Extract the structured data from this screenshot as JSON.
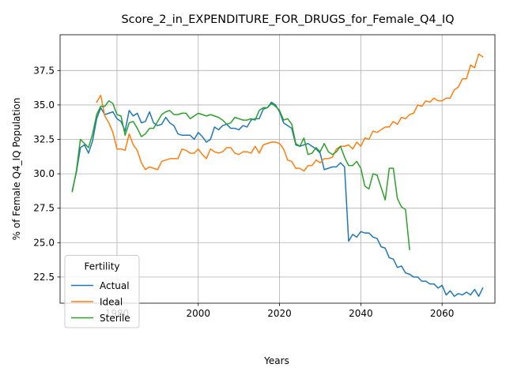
{
  "chart_data": {
    "type": "line",
    "title": "Score_2_in_EXPENDITURE_FOR_DRUGS_for_Female_Q4_IQ",
    "xlabel": "Years",
    "ylabel": "% of Female Q4_IQ Population",
    "xlim": [
      1966,
      2073
    ],
    "ylim": [
      20.6,
      40.1
    ],
    "x_ticks": [
      1980,
      2000,
      2020,
      2040,
      2060
    ],
    "x_tick_labels": [
      "1980",
      "2000",
      "2020",
      "2040",
      "2060"
    ],
    "y_ticks": [
      22.5,
      25.0,
      27.5,
      30.0,
      32.5,
      35.0,
      37.5
    ],
    "y_tick_labels": [
      "22.5",
      "25.0",
      "27.5",
      "30.0",
      "32.5",
      "35.0",
      "37.5"
    ],
    "grid": true,
    "legend": {
      "title": "Fertility",
      "position": "lower-left"
    },
    "series": [
      {
        "name": "Actual",
        "color": "#1f77b4",
        "x": [
          1969,
          1970,
          1971,
          1972,
          1973,
          1974,
          1975,
          1976,
          1977,
          1978,
          1979,
          1980,
          1981,
          1982,
          1983,
          1984,
          1985,
          1986,
          1987,
          1988,
          1989,
          1990,
          1991,
          1992,
          1993,
          1994,
          1995,
          1996,
          1997,
          1998,
          1999,
          2000,
          2001,
          2002,
          2003,
          2004,
          2005,
          2006,
          2007,
          2008,
          2009,
          2010,
          2011,
          2012,
          2013,
          2014,
          2015,
          2016,
          2017,
          2018,
          2019,
          2020,
          2021,
          2022,
          2023,
          2024,
          2025,
          2026,
          2027,
          2028,
          2029,
          2030,
          2031,
          2032,
          2033,
          2034,
          2035,
          2036,
          2037,
          2038,
          2039,
          2040,
          2041,
          2042,
          2043,
          2044,
          2045,
          2046,
          2047,
          2048,
          2049,
          2050,
          2051,
          2052,
          2053,
          2054,
          2055,
          2056,
          2057,
          2058,
          2059,
          2060,
          2061,
          2062,
          2063,
          2064,
          2065,
          2066,
          2067,
          2068,
          2069,
          2070
        ],
        "values": [
          28.8,
          30.1,
          31.9,
          32.1,
          31.5,
          32.4,
          34.0,
          34.8,
          34.3,
          34.4,
          34.5,
          34.0,
          33.8,
          33.1,
          34.6,
          34.2,
          34.4,
          33.7,
          33.8,
          34.5,
          33.7,
          33.5,
          33.6,
          34.1,
          33.7,
          33.5,
          32.9,
          32.8,
          32.8,
          32.8,
          32.5,
          33.0,
          32.7,
          32.3,
          32.5,
          33.4,
          33.2,
          33.5,
          33.6,
          33.3,
          33.3,
          33.2,
          33.5,
          33.4,
          33.9,
          34.0,
          34.0,
          34.7,
          34.8,
          35.2,
          35.0,
          34.5,
          33.7,
          33.5,
          33.3,
          32.1,
          32.0,
          32.1,
          32.2,
          32.0,
          31.8,
          31.5,
          30.3,
          30.4,
          30.5,
          30.5,
          30.8,
          30.5,
          25.1,
          25.6,
          25.4,
          25.8,
          25.7,
          25.7,
          25.4,
          25.3,
          24.7,
          24.6,
          23.9,
          23.8,
          23.2,
          23.3,
          22.8,
          22.7,
          22.5,
          22.5,
          22.2,
          22.2,
          22.0,
          22.0,
          21.7,
          21.9,
          21.2,
          21.5,
          21.1,
          21.3,
          21.2,
          21.4,
          21.2,
          21.6,
          21.1,
          21.7
        ]
      },
      {
        "name": "Ideal",
        "color": "#ff7f0e",
        "x": [
          1975,
          1976,
          1977,
          1978,
          1979,
          1980,
          1981,
          1982,
          1983,
          1984,
          1985,
          1986,
          1987,
          1988,
          1989,
          1990,
          1991,
          1992,
          1993,
          1994,
          1995,
          1996,
          1997,
          1998,
          1999,
          2000,
          2001,
          2002,
          2003,
          2004,
          2005,
          2006,
          2007,
          2008,
          2009,
          2010,
          2011,
          2012,
          2013,
          2014,
          2015,
          2016,
          2017,
          2018,
          2019,
          2020,
          2021,
          2022,
          2023,
          2024,
          2025,
          2026,
          2027,
          2028,
          2029,
          2030,
          2031,
          2032,
          2033,
          2034,
          2035,
          2036,
          2037,
          2038,
          2039,
          2040,
          2041,
          2042,
          2043,
          2044,
          2045,
          2046,
          2047,
          2048,
          2049,
          2050,
          2051,
          2052,
          2053,
          2054,
          2055,
          2056,
          2057,
          2058,
          2059,
          2060,
          2061,
          2062,
          2063,
          2064,
          2065,
          2066,
          2067,
          2068,
          2069,
          2070
        ],
        "values": [
          35.2,
          35.7,
          34.2,
          33.7,
          33.0,
          31.8,
          31.8,
          31.7,
          32.9,
          32.1,
          31.7,
          30.8,
          30.3,
          30.5,
          30.4,
          30.3,
          30.9,
          31.0,
          31.1,
          31.1,
          31.1,
          31.8,
          31.7,
          31.5,
          31.5,
          31.8,
          31.4,
          31.1,
          31.8,
          31.6,
          31.5,
          31.6,
          31.9,
          31.9,
          31.5,
          31.4,
          31.6,
          31.6,
          31.5,
          32.0,
          31.5,
          32.1,
          32.2,
          32.3,
          32.3,
          32.2,
          31.8,
          31.0,
          30.9,
          30.4,
          30.4,
          30.2,
          30.6,
          30.6,
          31.0,
          30.8,
          31.1,
          31.1,
          31.2,
          31.8,
          32.0,
          32.0,
          32.1,
          31.8,
          32.3,
          32.0,
          32.6,
          32.5,
          33.1,
          33.0,
          33.2,
          33.4,
          33.4,
          33.8,
          33.6,
          34.1,
          34.0,
          34.3,
          34.4,
          35.0,
          34.9,
          35.3,
          35.2,
          35.5,
          35.3,
          35.3,
          35.5,
          35.5,
          36.1,
          36.3,
          36.9,
          36.9,
          37.9,
          37.7,
          38.7,
          38.5
        ]
      },
      {
        "name": "Sterile",
        "color": "#2ca02c",
        "x": [
          1969,
          1970,
          1971,
          1972,
          1973,
          1974,
          1975,
          1976,
          1977,
          1978,
          1979,
          1980,
          1981,
          1982,
          1983,
          1984,
          1985,
          1986,
          1987,
          1988,
          1989,
          1990,
          1991,
          1992,
          1993,
          1994,
          1995,
          1996,
          1997,
          1998,
          1999,
          2000,
          2001,
          2002,
          2003,
          2004,
          2005,
          2006,
          2007,
          2008,
          2009,
          2010,
          2011,
          2012,
          2013,
          2014,
          2015,
          2016,
          2017,
          2018,
          2019,
          2020,
          2021,
          2022,
          2023,
          2024,
          2025,
          2026,
          2027,
          2028,
          2029,
          2030,
          2031,
          2032,
          2033,
          2034,
          2035,
          2036,
          2037,
          2038,
          2039,
          2040,
          2041,
          2042,
          2043,
          2044,
          2045,
          2046,
          2047,
          2048,
          2049,
          2050,
          2051,
          2052
        ],
        "values": [
          28.7,
          30.2,
          32.5,
          32.2,
          31.9,
          32.9,
          34.3,
          34.9,
          34.9,
          35.3,
          35.1,
          34.3,
          34.2,
          32.8,
          33.7,
          33.8,
          33.3,
          32.7,
          32.9,
          33.3,
          33.3,
          33.8,
          34.3,
          34.5,
          34.6,
          34.3,
          34.3,
          34.4,
          34.4,
          34.0,
          34.2,
          34.4,
          34.3,
          34.2,
          34.3,
          34.2,
          34.1,
          33.9,
          33.6,
          33.7,
          34.1,
          34.0,
          33.9,
          33.9,
          34.0,
          33.9,
          34.6,
          34.8,
          34.8,
          35.1,
          34.9,
          34.6,
          33.9,
          34.0,
          33.6,
          32.2,
          32.0,
          32.6,
          31.4,
          31.5,
          31.9,
          31.6,
          32.2,
          31.6,
          31.4,
          31.6,
          32.0,
          31.2,
          30.6,
          30.6,
          30.9,
          30.4,
          29.1,
          28.9,
          30.0,
          29.9,
          29.0,
          28.1,
          30.4,
          30.4,
          28.2,
          27.6,
          27.4,
          24.5
        ]
      }
    ]
  }
}
